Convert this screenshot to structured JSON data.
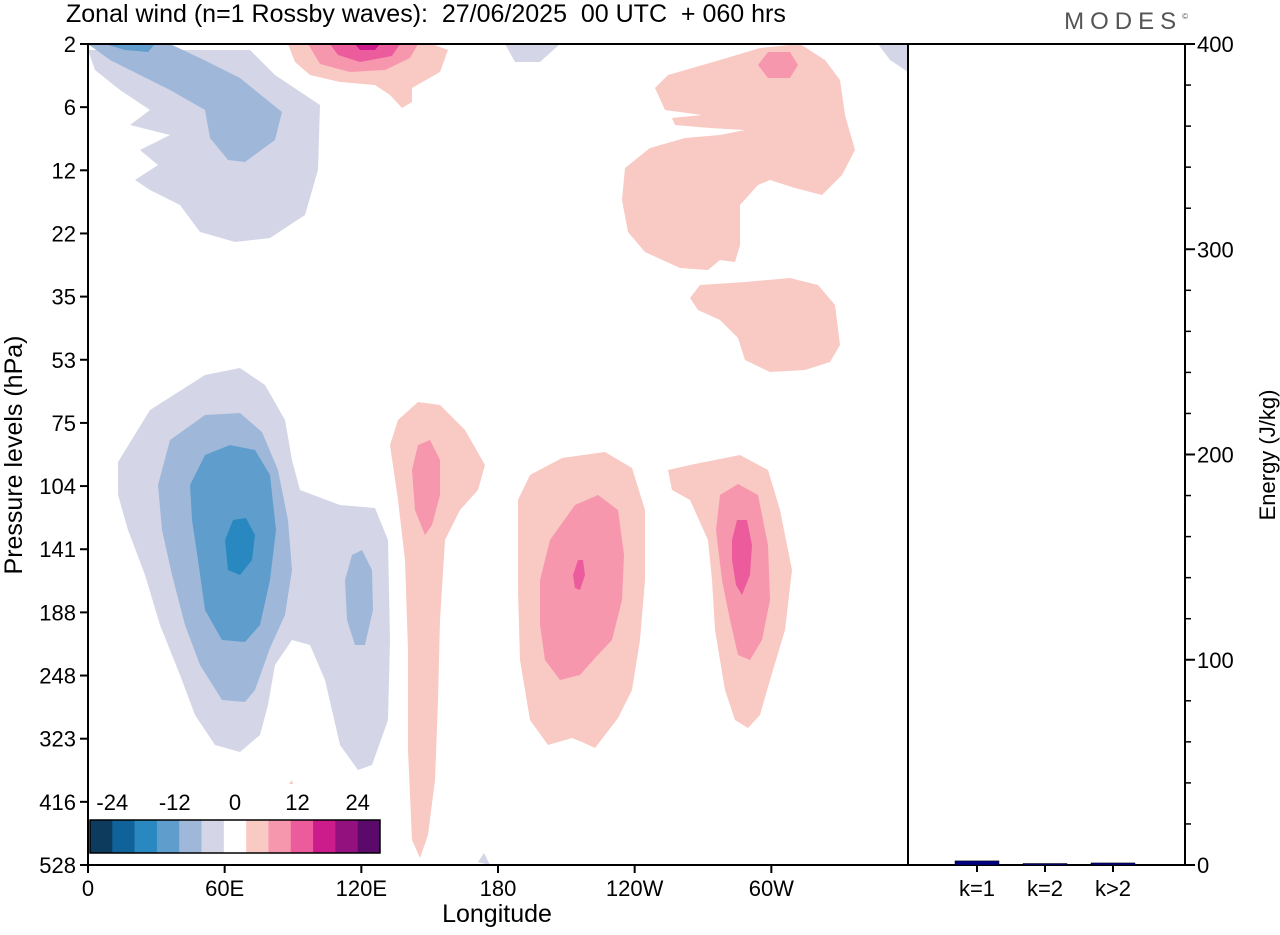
{
  "title": "Zonal wind (n=1 Rossby waves):  27/06/2025  00 UTC  + 060 hrs",
  "logo": "MODES",
  "logo_mark": "©",
  "chart_data": [
    {
      "type": "contour",
      "xlabel": "Longitude",
      "ylabel": "Pressure levels (hPa)",
      "x_ticks": [
        "0",
        "60E",
        "120E",
        "180",
        "120W",
        "60W"
      ],
      "y_ticks": [
        "2",
        "6",
        "12",
        "22",
        "35",
        "53",
        "75",
        "104",
        "141",
        "188",
        "248",
        "323",
        "416",
        "528"
      ],
      "colorbar": {
        "tick_labels": [
          "-24",
          "-12",
          "0",
          "12",
          "24"
        ],
        "colors": [
          "#0d3b5e",
          "#0f629a",
          "#2a88c0",
          "#5f9dcc",
          "#9fb8da",
          "#d4d6e8",
          "#ffffff",
          "#f9c9c4",
          "#f797ae",
          "#ec5c9c",
          "#cc1c8b",
          "#93107f",
          "#5b0a6b"
        ]
      },
      "features": [
        {
          "sign": "negative",
          "longitude": 65,
          "pressure_hPa": 141,
          "peak_wind": -22
        },
        {
          "sign": "negative",
          "longitude": 120,
          "pressure_hPa": 188,
          "peak_wind": -10
        },
        {
          "sign": "negative",
          "longitude": 60,
          "pressure_hPa": 6,
          "peak_wind": -10
        },
        {
          "sign": "positive",
          "longitude": 147,
          "pressure_hPa": 104,
          "peak_wind": 10
        },
        {
          "sign": "positive",
          "longitude": 215,
          "pressure_hPa": 141,
          "peak_wind": 17
        },
        {
          "sign": "positive",
          "longitude": 287,
          "pressure_hPa": 141,
          "peak_wind": 16
        },
        {
          "sign": "positive",
          "longitude": 120,
          "pressure_hPa": 2,
          "peak_wind": 18
        },
        {
          "sign": "positive",
          "longitude": 300,
          "pressure_hPa": 6,
          "peak_wind": 6
        }
      ]
    },
    {
      "type": "bar",
      "ylabel": "Energy (J/kg)",
      "categories": [
        "k=1",
        "k=2",
        "k>2"
      ],
      "values": [
        2,
        0.5,
        1
      ],
      "ylim": [
        0,
        400
      ],
      "y_ticks": [
        "0",
        "100",
        "200",
        "300",
        "400"
      ],
      "bar_color": "#000080"
    }
  ]
}
